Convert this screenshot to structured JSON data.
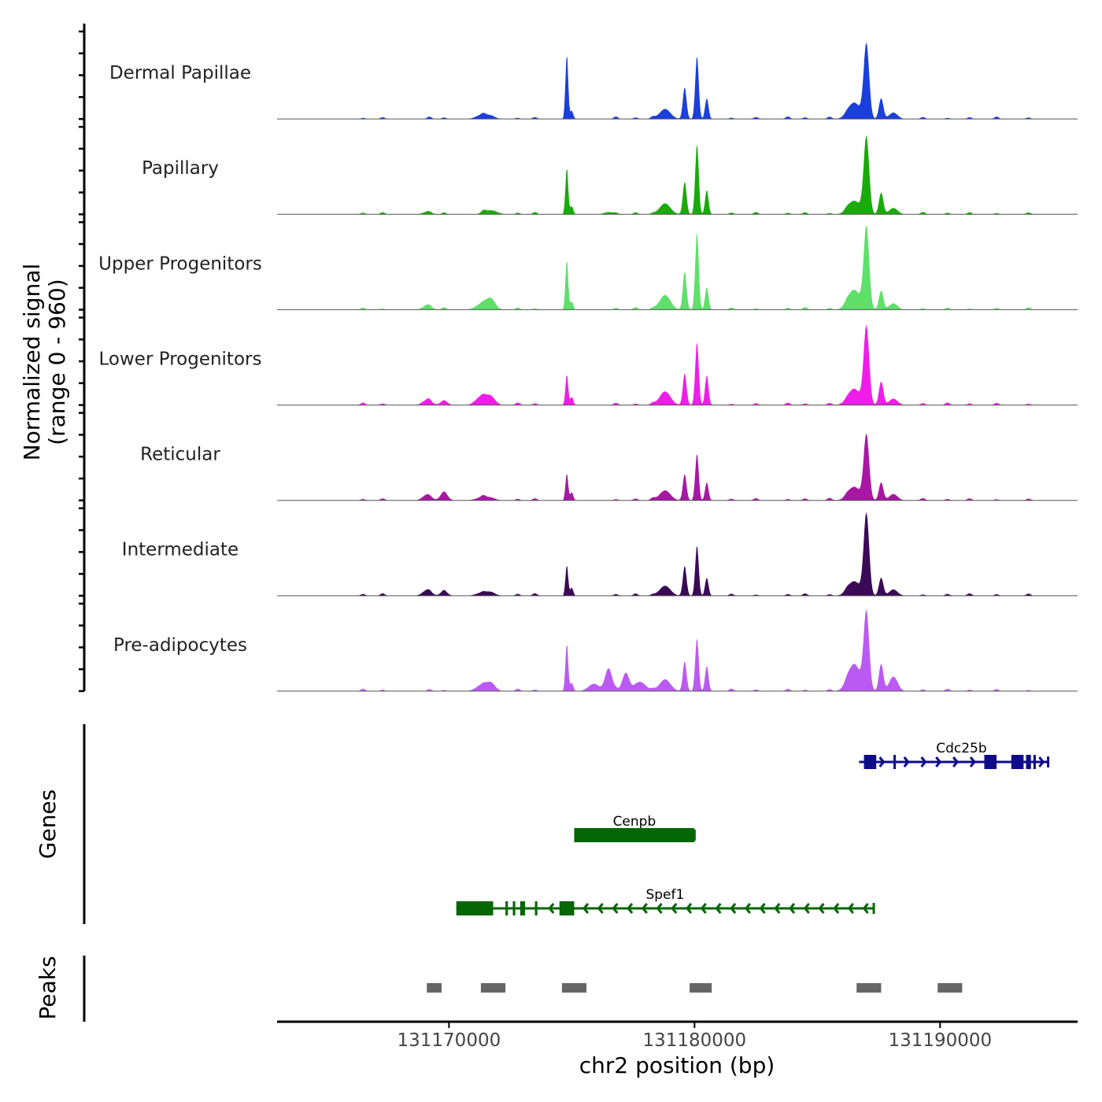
{
  "chart_data": {
    "type": "area",
    "title": "",
    "xlabel": "chr2 position (bp)",
    "ylabel_line1": "Normalized signal",
    "ylabel_line2": "(range 0 - 960)",
    "xlim": [
      131163000,
      131195600
    ],
    "ylim": [
      0,
      960
    ],
    "x_ticks": [
      131170000,
      131180000,
      131190000
    ],
    "x_tick_labels": [
      "131170000",
      "131180000",
      "131190000"
    ],
    "background_peaks": [
      131166500,
      131167300,
      131169200,
      131169800,
      131171400,
      131172800,
      131173500,
      131176800,
      131177600,
      131178300,
      131181500,
      131182500,
      131183800,
      131184500,
      131185500,
      131186200,
      131189300,
      131190300,
      131191200,
      131192300,
      131193600
    ],
    "series": [
      {
        "name": "Dermal Papillae",
        "color": "#1a3fdc",
        "peaks": [
          [
            131171300,
            40,
            220
          ],
          [
            131171700,
            35,
            180
          ],
          [
            131174800,
            720,
            55
          ],
          [
            131175000,
            90,
            60
          ],
          [
            131178800,
            110,
            220
          ],
          [
            131179600,
            350,
            75
          ],
          [
            131180100,
            700,
            70
          ],
          [
            131180500,
            230,
            70
          ],
          [
            131186500,
            180,
            250
          ],
          [
            131187000,
            820,
            110
          ],
          [
            131187600,
            230,
            90
          ],
          [
            131188100,
            70,
            170
          ]
        ]
      },
      {
        "name": "Papillary",
        "color": "#1aaa0a",
        "peaks": [
          [
            131169100,
            25,
            180
          ],
          [
            131171700,
            45,
            250
          ],
          [
            131174800,
            520,
            55
          ],
          [
            131175000,
            90,
            60
          ],
          [
            131176500,
            25,
            180
          ],
          [
            131178800,
            120,
            220
          ],
          [
            131179600,
            360,
            75
          ],
          [
            131180100,
            780,
            70
          ],
          [
            131180500,
            270,
            70
          ],
          [
            131186500,
            150,
            250
          ],
          [
            131187000,
            850,
            110
          ],
          [
            131187600,
            240,
            90
          ],
          [
            131188100,
            70,
            170
          ]
        ]
      },
      {
        "name": "Upper Progenitors",
        "color": "#5ee06a",
        "peaks": [
          [
            131169100,
            45,
            180
          ],
          [
            131171300,
            60,
            220
          ],
          [
            131171700,
            120,
            180
          ],
          [
            131174800,
            560,
            55
          ],
          [
            131175000,
            90,
            60
          ],
          [
            131178800,
            160,
            220
          ],
          [
            131179600,
            420,
            75
          ],
          [
            131180100,
            860,
            70
          ],
          [
            131180500,
            250,
            70
          ],
          [
            131186500,
            220,
            250
          ],
          [
            131187000,
            900,
            110
          ],
          [
            131187600,
            210,
            90
          ],
          [
            131188100,
            70,
            170
          ]
        ]
      },
      {
        "name": "Lower Progenitors",
        "color": "#f01de8",
        "peaks": [
          [
            131169100,
            55,
            180
          ],
          [
            131169800,
            40,
            150
          ],
          [
            131171300,
            90,
            220
          ],
          [
            131171700,
            90,
            180
          ],
          [
            131174800,
            340,
            55
          ],
          [
            131175000,
            90,
            60
          ],
          [
            131178800,
            150,
            220
          ],
          [
            131179600,
            350,
            75
          ],
          [
            131180100,
            700,
            70
          ],
          [
            131180500,
            330,
            70
          ],
          [
            131186500,
            180,
            250
          ],
          [
            131187000,
            860,
            110
          ],
          [
            131187600,
            260,
            90
          ],
          [
            131188100,
            70,
            170
          ]
        ]
      },
      {
        "name": "Reticular",
        "color": "#a817a4",
        "peaks": [
          [
            131169100,
            60,
            180
          ],
          [
            131169800,
            80,
            150
          ],
          [
            131171300,
            30,
            220
          ],
          [
            131171700,
            30,
            180
          ],
          [
            131174800,
            300,
            55
          ],
          [
            131175000,
            90,
            60
          ],
          [
            131178800,
            110,
            220
          ],
          [
            131179600,
            290,
            75
          ],
          [
            131180100,
            520,
            70
          ],
          [
            131180500,
            200,
            70
          ],
          [
            131186500,
            150,
            250
          ],
          [
            131187000,
            720,
            110
          ],
          [
            131187600,
            200,
            90
          ],
          [
            131188100,
            70,
            170
          ]
        ]
      },
      {
        "name": "Intermediate",
        "color": "#3a0a56",
        "peaks": [
          [
            131169100,
            60,
            180
          ],
          [
            131169800,
            40,
            150
          ],
          [
            131171300,
            30,
            220
          ],
          [
            131171700,
            40,
            180
          ],
          [
            131174800,
            340,
            55
          ],
          [
            131175000,
            90,
            60
          ],
          [
            131178800,
            110,
            220
          ],
          [
            131179600,
            330,
            75
          ],
          [
            131180100,
            560,
            70
          ],
          [
            131180500,
            200,
            70
          ],
          [
            131186500,
            160,
            250
          ],
          [
            131187000,
            900,
            110
          ],
          [
            131187600,
            200,
            90
          ],
          [
            131188100,
            70,
            170
          ]
        ]
      },
      {
        "name": "Pre-adipocytes",
        "color": "#bb5af2",
        "peaks": [
          [
            131171300,
            60,
            220
          ],
          [
            131171700,
            90,
            180
          ],
          [
            131174800,
            530,
            55
          ],
          [
            131175000,
            90,
            60
          ],
          [
            131175900,
            80,
            220
          ],
          [
            131176500,
            250,
            140
          ],
          [
            131177200,
            200,
            140
          ],
          [
            131177800,
            100,
            220
          ],
          [
            131178800,
            130,
            220
          ],
          [
            131179600,
            330,
            75
          ],
          [
            131180100,
            590,
            70
          ],
          [
            131180500,
            280,
            70
          ],
          [
            131186500,
            300,
            250
          ],
          [
            131187000,
            860,
            110
          ],
          [
            131187600,
            300,
            90
          ],
          [
            131188100,
            160,
            170
          ]
        ]
      }
    ],
    "genes": [
      {
        "name": "Cdc25b",
        "strand": "+",
        "color": "#0e0b8b",
        "start": 131186700,
        "end": 131194400,
        "exons": [
          [
            131186900,
            131187400
          ],
          [
            131188100,
            131188200
          ],
          [
            131191800,
            131192300
          ],
          [
            131192900,
            131193400
          ],
          [
            131193500,
            131193700
          ],
          [
            131193800,
            131193900
          ]
        ],
        "arrows": [
          131187700,
          131188700,
          131189400,
          131190000,
          131190700,
          131191400,
          131194200
        ]
      },
      {
        "name": "Cenpb",
        "strand": "-",
        "color": "#056605",
        "start": 131175100,
        "end": 131180000,
        "exons": [
          [
            131175100,
            131180000
          ]
        ],
        "arrows": []
      },
      {
        "name": "Spef1",
        "strand": "-",
        "color": "#056605",
        "start": 131170300,
        "end": 131187300,
        "exons": [
          [
            131170300,
            131171800
          ],
          [
            131172300,
            131172400
          ],
          [
            131172600,
            131172700
          ],
          [
            131172900,
            131173100
          ],
          [
            131173500,
            131173600
          ],
          [
            131174500,
            131175100
          ]
        ],
        "arrows": [
          131174100,
          131175500,
          131176100,
          131176700,
          131177300,
          131177900,
          131178500,
          131179100,
          131179700,
          131180300,
          131180900,
          131181500,
          131182100,
          131182700,
          131183300,
          131183900,
          131184500,
          131185100,
          131185700,
          131186300,
          131186900
        ]
      }
    ],
    "peak_regions": [
      [
        131169100,
        131169700
      ],
      [
        131171300,
        131172300
      ],
      [
        131174600,
        131175600
      ],
      [
        131179800,
        131180700
      ],
      [
        131186600,
        131187600
      ],
      [
        131189900,
        131190900
      ]
    ],
    "panel_labels": {
      "genes": "Genes",
      "peaks": "Peaks"
    }
  },
  "colors": {
    "axis": "#000000",
    "baseline": "#555555",
    "peak_box": "#666666"
  }
}
